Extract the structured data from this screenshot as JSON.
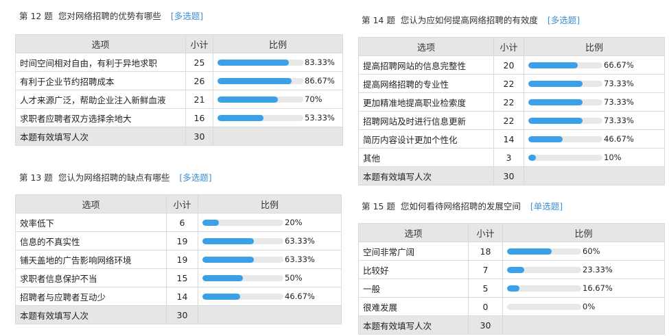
{
  "colors": {
    "bar_fill": "#3aa0e8",
    "bar_track": "#e8e8e8",
    "tag": "#3b8fd6",
    "header_bg": "#e6e6e6"
  },
  "questions": [
    {
      "num": "第 12 题",
      "title": "您对网络招聘的优势有哪些",
      "tag": "[多选题]",
      "col_option": "选项",
      "col_count": "小计",
      "col_ratio": "比例",
      "rows": [
        {
          "option": "时间空间相对自由，有利于异地求职",
          "count": "25",
          "percent": 83.33,
          "percent_label": "83.33%"
        },
        {
          "option": "有利于企业节约招聘成本",
          "count": "26",
          "percent": 86.67,
          "percent_label": "86.67%"
        },
        {
          "option": "人才来源广泛，帮助企业注入新鲜血液",
          "count": "21",
          "percent": 70,
          "percent_label": "70%"
        },
        {
          "option": "求职者应聘者双方选择余地大",
          "count": "16",
          "percent": 53.33,
          "percent_label": "53.33%"
        }
      ],
      "total_label": "本题有效填写人次",
      "total_count": "30"
    },
    {
      "num": "第 13 题",
      "title": "您认为网络招聘的缺点有哪些",
      "tag": "[多选题]",
      "col_option": "选项",
      "col_count": "小计",
      "col_ratio": "比例",
      "rows": [
        {
          "option": "效率低下",
          "count": "6",
          "percent": 20,
          "percent_label": "20%"
        },
        {
          "option": "信息的不真实性",
          "count": "19",
          "percent": 63.33,
          "percent_label": "63.33%"
        },
        {
          "option": "铺天盖地的广告影响网络环境",
          "count": "19",
          "percent": 63.33,
          "percent_label": "63.33%"
        },
        {
          "option": "求职者信息保护不当",
          "count": "15",
          "percent": 50,
          "percent_label": "50%"
        },
        {
          "option": "招聘者与应聘者互动少",
          "count": "14",
          "percent": 46.67,
          "percent_label": "46.67%"
        }
      ],
      "total_label": "本题有效填写人次",
      "total_count": "30"
    },
    {
      "num": "第 14 题",
      "title": "您认为应如何提高网络招聘的有效度",
      "tag": "[多选题]",
      "col_option": "选项",
      "col_count": "小计",
      "col_ratio": "比例",
      "rows": [
        {
          "option": "提高招聘网站的信息完整性",
          "count": "20",
          "percent": 66.67,
          "percent_label": "66.67%"
        },
        {
          "option": "提高网络招聘的专业性",
          "count": "22",
          "percent": 73.33,
          "percent_label": "73.33%"
        },
        {
          "option": "更加精准地提高职业检索度",
          "count": "22",
          "percent": 73.33,
          "percent_label": "73.33%"
        },
        {
          "option": "招聘网站及时进行信息更新",
          "count": "22",
          "percent": 73.33,
          "percent_label": "73.33%"
        },
        {
          "option": "简历内容设计更加个性化",
          "count": "14",
          "percent": 46.67,
          "percent_label": "46.67%"
        },
        {
          "option": "其他",
          "count": "3",
          "percent": 10,
          "percent_label": "10%"
        }
      ],
      "total_label": "本题有效填写人次",
      "total_count": "30"
    },
    {
      "num": "第 15 题",
      "title": "您如何看待网络招聘的发展空间",
      "tag": "[单选题]",
      "col_option": "选项",
      "col_count": "小计",
      "col_ratio": "比例",
      "rows": [
        {
          "option": "空间非常广阔",
          "count": "18",
          "percent": 60,
          "percent_label": "60%"
        },
        {
          "option": "比较好",
          "count": "7",
          "percent": 23.33,
          "percent_label": "23.33%"
        },
        {
          "option": "一般",
          "count": "5",
          "percent": 16.67,
          "percent_label": "16.67%"
        },
        {
          "option": "很难发展",
          "count": "0",
          "percent": 0,
          "percent_label": "0%"
        }
      ],
      "total_label": "本题有效填写人次",
      "total_count": "30"
    }
  ]
}
